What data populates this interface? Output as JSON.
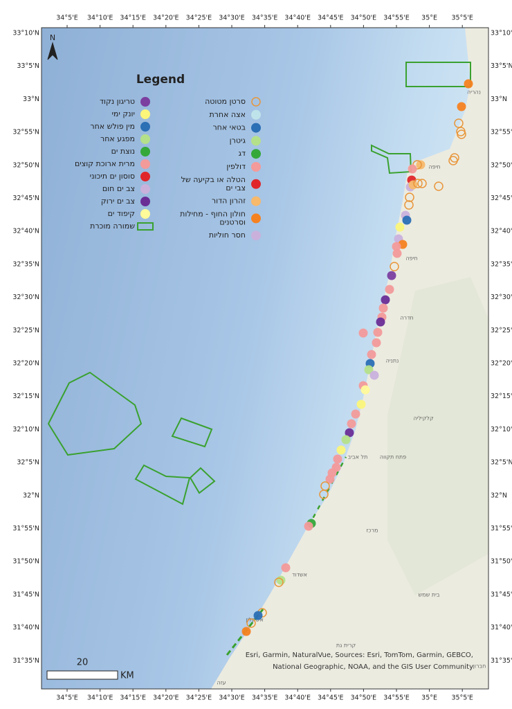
{
  "north": "N",
  "legend": {
    "title": "Legend",
    "columns": [
      [
        {
          "lines": [
            "טריגון נקוד"
          ],
          "color": "#7b3fa0"
        },
        {
          "lines": [
            "יונק ימי"
          ],
          "color": "#fbf57a"
        },
        {
          "lines": [
            "מין פולש אחר"
          ],
          "color": "#2b6fb5"
        },
        {
          "lines": [
            "מפגע אחר"
          ],
          "color": "#b5e08a"
        },
        {
          "lines": [
            "נוצת ים"
          ],
          "color": "#35a83a"
        },
        {
          "lines": [
            "מרית ארוכת קוצים"
          ],
          "color": "#f39a9a"
        },
        {
          "lines": [
            "סוסון ים תיכוני"
          ],
          "color": "#e0262a"
        },
        {
          "lines": [
            "צב ים חום"
          ],
          "color": "#c9b1dc"
        },
        {
          "lines": [
            "צב ים ירוק"
          ],
          "color": "#6a2d96"
        },
        {
          "lines": [
            "קיפוד ים"
          ],
          "color": "#fffa9a"
        },
        {
          "lines": [
            "שמורה מוכרת"
          ],
          "color": "#3aa12f",
          "style": "polygon"
        }
      ],
      [
        {
          "lines": [
            "סרטן מטוטה"
          ],
          "color": "#e8963a",
          "style": "ring"
        },
        {
          "lines": [
            "אצה אחרת"
          ],
          "color": "#bfe3ea"
        },
        {
          "lines": [
            "בטאי אחר"
          ],
          "color": "#2b6fb5"
        },
        {
          "lines": [
            "גיטרן"
          ],
          "color": "#b5e08a"
        },
        {
          "lines": [
            "דג"
          ],
          "color": "#35a83a"
        },
        {
          "lines": [
            "דולפין"
          ],
          "color": "#f39a9a"
        },
        {
          "lines": [
            "הטלה או בקיעה של",
            "צבי ים"
          ],
          "color": "#e0262a"
        },
        {
          "lines": [
            "זהרון הדור"
          ],
          "color": "#f7b96b"
        },
        {
          "lines": [
            "חולון החוף - מחילות",
            "וסרטנים"
          ],
          "color": "#f58220"
        },
        {
          "lines": [
            "חסר חוליות"
          ],
          "color": "#c9b1dc"
        }
      ]
    ]
  },
  "longitude_labels": [
    "34°5'E",
    "34°10'E",
    "34°15'E",
    "34°20'E",
    "34°25'E",
    "34°30'E",
    "34°35'E",
    "34°40'E",
    "34°45'E",
    "34°50'E",
    "34°55'E",
    "35°E",
    "35°5'E"
  ],
  "latitude_labels": [
    "33°10'N",
    "33°5'N",
    "33°N",
    "32°55'N",
    "32°50'N",
    "32°45'N",
    "32°40'N",
    "32°35'N",
    "32°30'N",
    "32°25'N",
    "32°20'N",
    "32°15'N",
    "32°10'N",
    "32°5'N",
    "32°N",
    "31°55'N",
    "31°50'N",
    "31°45'N",
    "31°40'N",
    "31°35'N"
  ],
  "places": [
    "נהריה",
    "חיפה",
    "חיפה",
    "חדרה",
    "נתניה",
    "קלקיליה",
    "תל אביב",
    "פתח תקווה",
    "מרכז",
    "אשדוד",
    "בית שמש",
    "אשקלון",
    "קרית גת",
    "עזה",
    "חברון"
  ],
  "scale": {
    "value": "20",
    "unit": "KM"
  },
  "attribution": [
    "Esri, Garmin, NaturalVue, Sources: Esri, TomTom, Garmin, GEBCO,",
    "National Geographic, NOAA, and the GIS User Community"
  ]
}
